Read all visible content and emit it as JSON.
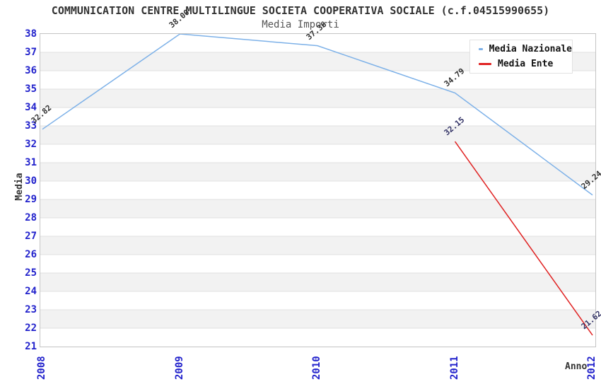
{
  "chart_data": {
    "type": "line",
    "title": "COMMUNICATION CENTRE MULTILINGUE SOCIETA COOPERATIVA SOCIALE (c.f.04515990655)",
    "subtitle": "Media Importi",
    "xlabel": "Anno",
    "ylabel": "Media",
    "x": [
      "2008",
      "2009",
      "2010",
      "2011",
      "2012"
    ],
    "ylim": [
      21,
      38
    ],
    "yticks": [
      38,
      37,
      36,
      35,
      34,
      33,
      32,
      31,
      30,
      29,
      28,
      27,
      26,
      25,
      24,
      23,
      22,
      21
    ],
    "grid": "horizontal-bands",
    "legend_position": "top-right",
    "series": [
      {
        "name": "Media Nazionale",
        "color": "#7db1e8",
        "values": [
          32.82,
          38.0,
          37.36,
          34.79,
          29.24
        ],
        "labels": [
          "32.82",
          "38.00",
          "37.36",
          "34.79",
          "29.24"
        ],
        "label_color": "#333333"
      },
      {
        "name": "Media Ente",
        "color": "#e02222",
        "values": [
          null,
          null,
          null,
          32.15,
          21.62
        ],
        "labels": [
          null,
          null,
          null,
          "32.15",
          "21.62"
        ],
        "label_color": "#333366"
      }
    ],
    "style": {
      "tick_color": "#2222cc",
      "gridline_color": "#e0e0e0",
      "band_color": "#f2f2f2",
      "title_color": "#333333",
      "subtitle_color": "#555555"
    }
  }
}
